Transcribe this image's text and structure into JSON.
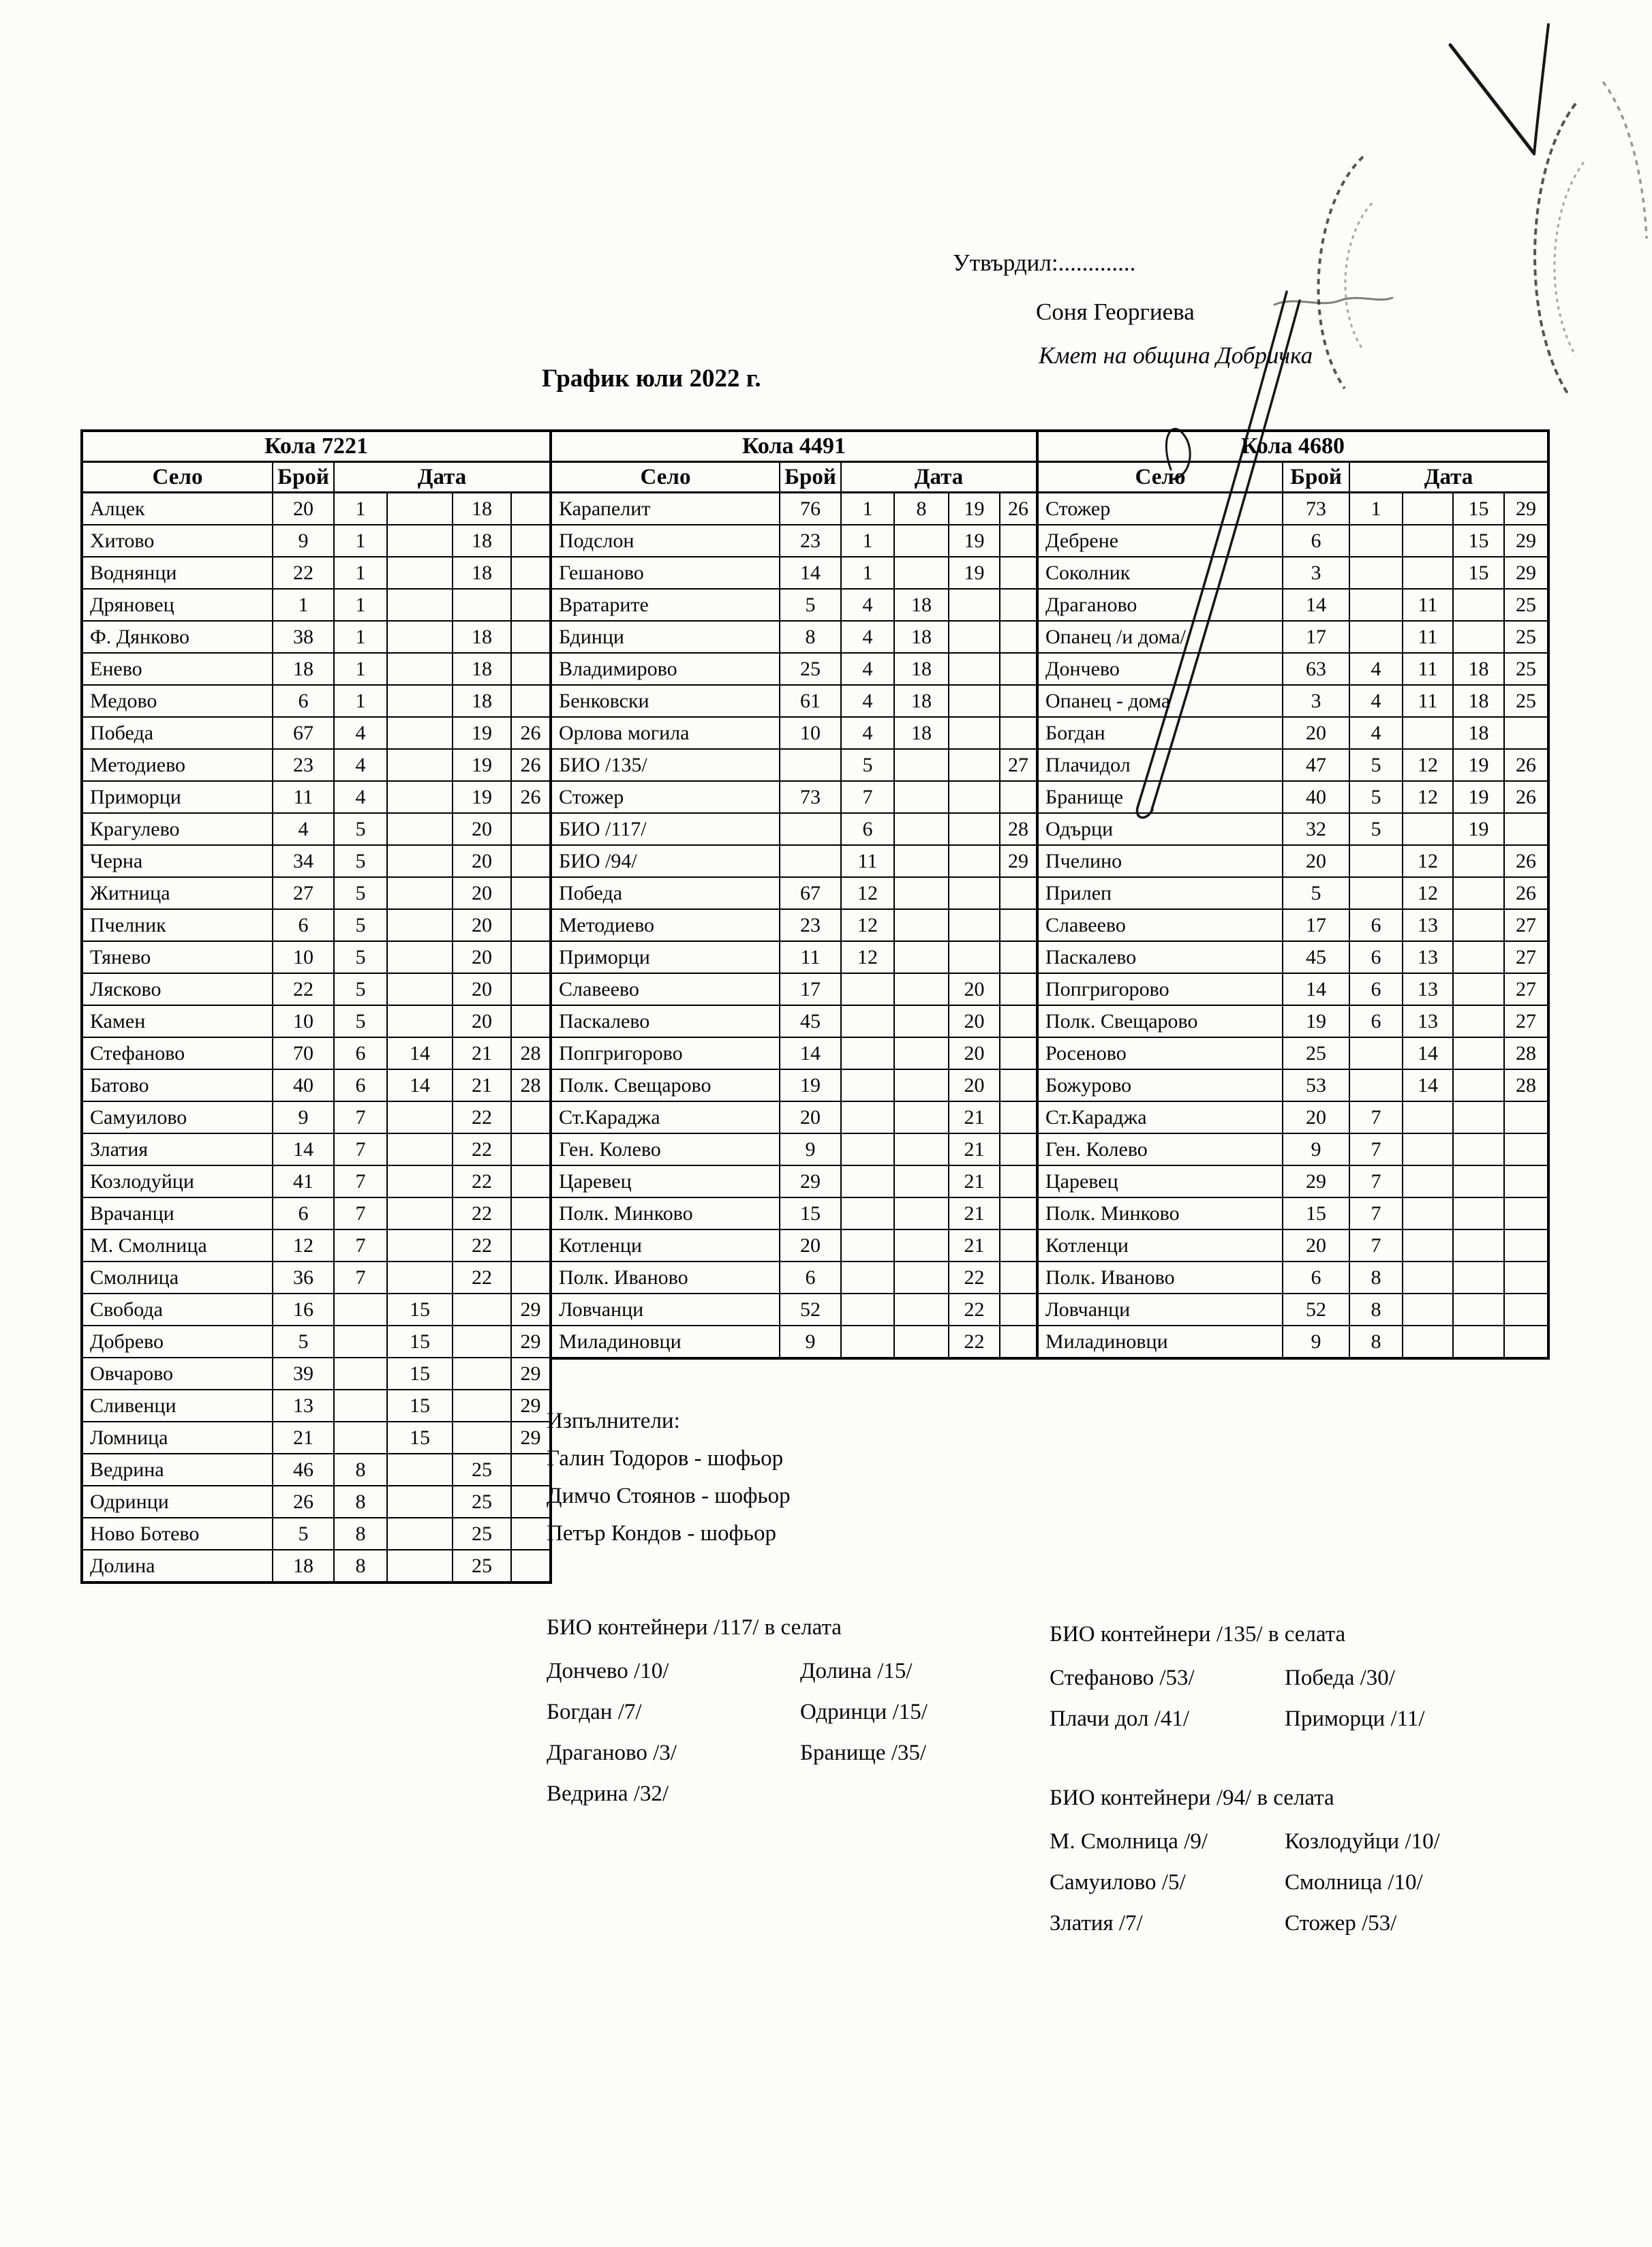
{
  "header": {
    "approve_label": "Утвърдил:.............",
    "approver_name": "Соня Георгиева",
    "approver_title": "Кмет  на община Добричка",
    "doc_title": "График юли 2022 г."
  },
  "columns": {
    "village": "Село",
    "count": "Брой",
    "date": "Дата"
  },
  "tables": [
    {
      "title": "Кола 7221",
      "rows": [
        {
          "village": "Алцек",
          "count": "20",
          "dates": [
            "1",
            "",
            "18",
            ""
          ]
        },
        {
          "village": "Хитово",
          "count": "9",
          "dates": [
            "1",
            "",
            "18",
            ""
          ]
        },
        {
          "village": "Воднянци",
          "count": "22",
          "dates": [
            "1",
            "",
            "18",
            ""
          ]
        },
        {
          "village": "Дряновец",
          "count": "1",
          "dates": [
            "1",
            "",
            "",
            ""
          ]
        },
        {
          "village": "Ф. Дянково",
          "count": "38",
          "dates": [
            "1",
            "",
            "18",
            ""
          ]
        },
        {
          "village": "Енево",
          "count": "18",
          "dates": [
            "1",
            "",
            "18",
            ""
          ]
        },
        {
          "village": "Медово",
          "count": "6",
          "dates": [
            "1",
            "",
            "18",
            ""
          ]
        },
        {
          "village": "Победа",
          "count": "67",
          "dates": [
            "4",
            "",
            "19",
            "26"
          ]
        },
        {
          "village": "Методиево",
          "count": "23",
          "dates": [
            "4",
            "",
            "19",
            "26"
          ]
        },
        {
          "village": "Приморци",
          "count": "11",
          "dates": [
            "4",
            "",
            "19",
            "26"
          ]
        },
        {
          "village": "Крагулево",
          "count": "4",
          "dates": [
            "5",
            "",
            "20",
            ""
          ]
        },
        {
          "village": "Черна",
          "count": "34",
          "dates": [
            "5",
            "",
            "20",
            ""
          ]
        },
        {
          "village": "Житница",
          "count": "27",
          "dates": [
            "5",
            "",
            "20",
            ""
          ]
        },
        {
          "village": "Пчелник",
          "count": "6",
          "dates": [
            "5",
            "",
            "20",
            ""
          ]
        },
        {
          "village": "Тянево",
          "count": "10",
          "dates": [
            "5",
            "",
            "20",
            ""
          ]
        },
        {
          "village": "Лясково",
          "count": "22",
          "dates": [
            "5",
            "",
            "20",
            ""
          ]
        },
        {
          "village": "Камен",
          "count": "10",
          "dates": [
            "5",
            "",
            "20",
            ""
          ]
        },
        {
          "village": "Стефаново",
          "count": "70",
          "dates": [
            "6",
            "14",
            "21",
            "28"
          ]
        },
        {
          "village": "Батово",
          "count": "40",
          "dates": [
            "6",
            "14",
            "21",
            "28"
          ]
        },
        {
          "village": "Самуилово",
          "count": "9",
          "dates": [
            "7",
            "",
            "22",
            ""
          ]
        },
        {
          "village": "Златия",
          "count": "14",
          "dates": [
            "7",
            "",
            "22",
            ""
          ]
        },
        {
          "village": "Козлодуйци",
          "count": "41",
          "dates": [
            "7",
            "",
            "22",
            ""
          ]
        },
        {
          "village": "Врачанци",
          "count": "6",
          "dates": [
            "7",
            "",
            "22",
            ""
          ]
        },
        {
          "village": "М. Смолница",
          "count": "12",
          "dates": [
            "7",
            "",
            "22",
            ""
          ]
        },
        {
          "village": "Смолница",
          "count": "36",
          "dates": [
            "7",
            "",
            "22",
            ""
          ]
        },
        {
          "village": "Свобода",
          "count": "16",
          "dates": [
            "",
            "15",
            "",
            "29"
          ]
        },
        {
          "village": "Добрево",
          "count": "5",
          "dates": [
            "",
            "15",
            "",
            "29"
          ]
        },
        {
          "village": "Овчарово",
          "count": "39",
          "dates": [
            "",
            "15",
            "",
            "29"
          ]
        },
        {
          "village": "Сливенци",
          "count": "13",
          "dates": [
            "",
            "15",
            "",
            "29"
          ]
        },
        {
          "village": "Ломница",
          "count": "21",
          "dates": [
            "",
            "15",
            "",
            "29"
          ]
        },
        {
          "village": "Ведрина",
          "count": "46",
          "dates": [
            "8",
            "",
            "25",
            ""
          ]
        },
        {
          "village": "Одринци",
          "count": "26",
          "dates": [
            "8",
            "",
            "25",
            ""
          ]
        },
        {
          "village": "Ново Ботево",
          "count": "5",
          "dates": [
            "8",
            "",
            "25",
            ""
          ]
        },
        {
          "village": "Долина",
          "count": "18",
          "dates": [
            "8",
            "",
            "25",
            ""
          ]
        }
      ]
    },
    {
      "title": "Кола 4491",
      "rows": [
        {
          "village": "Карапелит",
          "count": "76",
          "dates": [
            "1",
            "8",
            "19",
            "26"
          ]
        },
        {
          "village": "Подслон",
          "count": "23",
          "dates": [
            "1",
            "",
            "19",
            ""
          ]
        },
        {
          "village": "Гешаново",
          "count": "14",
          "dates": [
            "1",
            "",
            "19",
            ""
          ]
        },
        {
          "village": "Вратарите",
          "count": "5",
          "dates": [
            "4",
            "18",
            "",
            ""
          ]
        },
        {
          "village": "Бдинци",
          "count": "8",
          "dates": [
            "4",
            "18",
            "",
            ""
          ]
        },
        {
          "village": "Владимирово",
          "count": "25",
          "dates": [
            "4",
            "18",
            "",
            ""
          ]
        },
        {
          "village": "Бенковски",
          "count": "61",
          "dates": [
            "4",
            "18",
            "",
            ""
          ]
        },
        {
          "village": "Орлова могила",
          "count": "10",
          "dates": [
            "4",
            "18",
            "",
            ""
          ]
        },
        {
          "village": "БИО /135/",
          "count": "",
          "dates": [
            "5",
            "",
            "",
            "27"
          ]
        },
        {
          "village": "Стожер",
          "count": "73",
          "dates": [
            "7",
            "",
            "",
            ""
          ]
        },
        {
          "village": "БИО /117/",
          "count": "",
          "dates": [
            "6",
            "",
            "",
            "28"
          ]
        },
        {
          "village": "БИО /94/",
          "count": "",
          "dates": [
            "11",
            "",
            "",
            "29"
          ]
        },
        {
          "village": "Победа",
          "count": "67",
          "dates": [
            "12",
            "",
            "",
            ""
          ]
        },
        {
          "village": "Методиево",
          "count": "23",
          "dates": [
            "12",
            "",
            "",
            ""
          ]
        },
        {
          "village": "Приморци",
          "count": "11",
          "dates": [
            "12",
            "",
            "",
            ""
          ]
        },
        {
          "village": "Славеево",
          "count": "17",
          "dates": [
            "",
            "",
            "20",
            ""
          ]
        },
        {
          "village": "Паскалево",
          "count": "45",
          "dates": [
            "",
            "",
            "20",
            ""
          ]
        },
        {
          "village": "Попгригорово",
          "count": "14",
          "dates": [
            "",
            "",
            "20",
            ""
          ]
        },
        {
          "village": "Полк. Свещарово",
          "count": "19",
          "dates": [
            "",
            "",
            "20",
            ""
          ]
        },
        {
          "village": "Ст.Караджа",
          "count": "20",
          "dates": [
            "",
            "",
            "21",
            ""
          ]
        },
        {
          "village": "Ген. Колево",
          "count": "9",
          "dates": [
            "",
            "",
            "21",
            ""
          ]
        },
        {
          "village": "Царевец",
          "count": "29",
          "dates": [
            "",
            "",
            "21",
            ""
          ]
        },
        {
          "village": "Полк. Минково",
          "count": "15",
          "dates": [
            "",
            "",
            "21",
            ""
          ]
        },
        {
          "village": "Котленци",
          "count": "20",
          "dates": [
            "",
            "",
            "21",
            ""
          ]
        },
        {
          "village": "Полк. Иваново",
          "count": "6",
          "dates": [
            "",
            "",
            "22",
            ""
          ]
        },
        {
          "village": "Ловчанци",
          "count": "52",
          "dates": [
            "",
            "",
            "22",
            ""
          ]
        },
        {
          "village": "Миладиновци",
          "count": "9",
          "dates": [
            "",
            "",
            "22",
            ""
          ]
        }
      ]
    },
    {
      "title": "Кола 4680",
      "rows": [
        {
          "village": "Стожер",
          "count": "73",
          "dates": [
            "1",
            "",
            "15",
            "29"
          ]
        },
        {
          "village": "Дебрене",
          "count": "6",
          "dates": [
            "",
            "",
            "15",
            "29"
          ]
        },
        {
          "village": "Соколник",
          "count": "3",
          "dates": [
            "",
            "",
            "15",
            "29"
          ]
        },
        {
          "village": "Драганово",
          "count": "14",
          "dates": [
            "",
            "11",
            "",
            "25"
          ]
        },
        {
          "village": "Опанец /и дома/",
          "count": "17",
          "dates": [
            "",
            "11",
            "",
            "25"
          ]
        },
        {
          "village": "Дончево",
          "count": "63",
          "dates": [
            "4",
            "11",
            "18",
            "25"
          ]
        },
        {
          "village": "Опанец - дома",
          "count": "3",
          "dates": [
            "4",
            "11",
            "18",
            "25"
          ]
        },
        {
          "village": "Богдан",
          "count": "20",
          "dates": [
            "4",
            "",
            "18",
            ""
          ]
        },
        {
          "village": "Плачидол",
          "count": "47",
          "dates": [
            "5",
            "12",
            "19",
            "26"
          ]
        },
        {
          "village": "Бранище",
          "count": "40",
          "dates": [
            "5",
            "12",
            "19",
            "26"
          ]
        },
        {
          "village": "Одърци",
          "count": "32",
          "dates": [
            "5",
            "",
            "19",
            ""
          ]
        },
        {
          "village": "Пчелино",
          "count": "20",
          "dates": [
            "",
            "12",
            "",
            "26"
          ]
        },
        {
          "village": "Прилеп",
          "count": "5",
          "dates": [
            "",
            "12",
            "",
            "26"
          ]
        },
        {
          "village": "Славеево",
          "count": "17",
          "dates": [
            "6",
            "13",
            "",
            "27"
          ]
        },
        {
          "village": "Паскалево",
          "count": "45",
          "dates": [
            "6",
            "13",
            "",
            "27"
          ]
        },
        {
          "village": "Попгригорово",
          "count": "14",
          "dates": [
            "6",
            "13",
            "",
            "27"
          ]
        },
        {
          "village": "Полк. Свещарово",
          "count": "19",
          "dates": [
            "6",
            "13",
            "",
            "27"
          ]
        },
        {
          "village": "Росеново",
          "count": "25",
          "dates": [
            "",
            "14",
            "",
            "28"
          ]
        },
        {
          "village": "Божурово",
          "count": "53",
          "dates": [
            "",
            "14",
            "",
            "28"
          ]
        },
        {
          "village": "Ст.Караджа",
          "count": "20",
          "dates": [
            "7",
            "",
            "",
            ""
          ]
        },
        {
          "village": "Ген. Колево",
          "count": "9",
          "dates": [
            "7",
            "",
            "",
            ""
          ]
        },
        {
          "village": "Царевец",
          "count": "29",
          "dates": [
            "7",
            "",
            "",
            ""
          ]
        },
        {
          "village": "Полк. Минково",
          "count": "15",
          "dates": [
            "7",
            "",
            "",
            ""
          ]
        },
        {
          "village": "Котленци",
          "count": "20",
          "dates": [
            "7",
            "",
            "",
            ""
          ]
        },
        {
          "village": "Полк. Иваново",
          "count": "6",
          "dates": [
            "8",
            "",
            "",
            ""
          ]
        },
        {
          "village": "Ловчанци",
          "count": "52",
          "dates": [
            "8",
            "",
            "",
            ""
          ]
        },
        {
          "village": "Миладиновци",
          "count": "9",
          "dates": [
            "8",
            "",
            "",
            ""
          ]
        }
      ]
    }
  ],
  "executors": {
    "heading": "Изпълнители:",
    "items": [
      "Галин Тодоров - шофьор",
      "Димчо Стоянов - шофьор",
      "Петър Кондов - шофьор"
    ]
  },
  "notes": [
    {
      "heading": "БИО контейнери /117/ в селата",
      "pairs": [
        [
          "Дончево /10/",
          "Долина /15/"
        ],
        [
          "Богдан /7/",
          "Одринци /15/"
        ],
        [
          "Драганово /3/",
          "Бранище /35/"
        ],
        [
          "Ведрина /32/",
          ""
        ]
      ]
    },
    {
      "heading": "БИО контейнери /135/ в селата",
      "pairs": [
        [
          "Стефаново /53/",
          "Победа /30/"
        ],
        [
          "Плачи дол /41/",
          "Приморци /11/"
        ]
      ]
    },
    {
      "heading": "БИО контейнери /94/ в селата",
      "pairs": [
        [
          "М. Смолница /9/",
          "Козлодуйци /10/"
        ],
        [
          "Самуилово /5/",
          "Смолница /10/"
        ],
        [
          "Златия /7/",
          "Стожер /53/"
        ]
      ]
    }
  ],
  "ink_colors": {
    "pen": "#161616",
    "stamp": "#2a2a2a"
  }
}
